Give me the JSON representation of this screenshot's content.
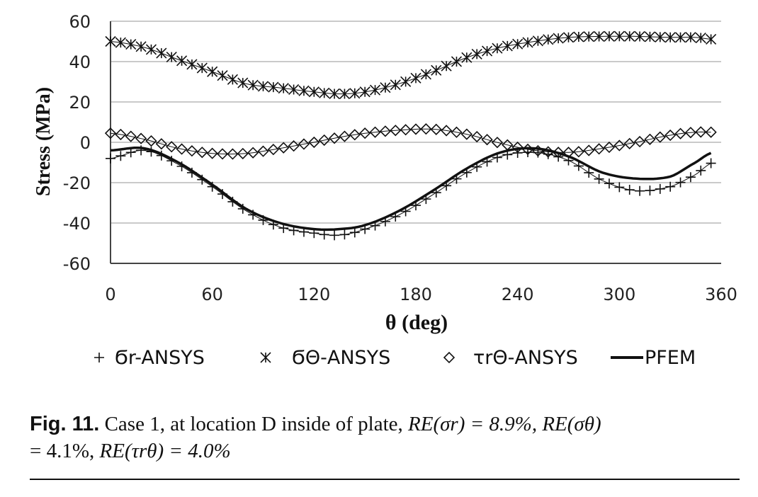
{
  "figure": {
    "caption": {
      "label": "Fig. 11.",
      "text1": "Case 1, at location D inside of plate,",
      "re_sr": "RE(σr) = 8.9%,",
      "re_st": "RE(σθ)",
      "line2a": "= 4.1%,",
      "re_trt": "RE(τrθ) = 4.0%"
    }
  },
  "chart_data": {
    "type": "line",
    "xlabel": "θ (deg)",
    "ylabel": "Stress (MPa)",
    "xlim": [
      0,
      360
    ],
    "ylim": [
      -60,
      60
    ],
    "xticks": [
      "0",
      "60",
      "120",
      "180",
      "240",
      "300",
      "360"
    ],
    "yticks": [
      "60",
      "40",
      "20",
      "0",
      "-20",
      "-40",
      "-60"
    ],
    "grid": "horizontal",
    "legend_position": "bottom",
    "x": [
      0,
      20,
      40,
      60,
      80,
      100,
      120,
      135,
      150,
      170,
      190,
      210,
      230,
      250,
      270,
      290,
      310,
      330,
      345,
      355
    ],
    "series": [
      {
        "name": "Ϭr-ANSYS",
        "marker": "plus",
        "values": [
          -8,
          -4,
          -11,
          -22,
          -34,
          -42,
          -45,
          -46,
          -43,
          -36,
          -26,
          -15,
          -7,
          -5,
          -9,
          -19,
          -24,
          -22,
          -16,
          -10
        ]
      },
      {
        "name": "ϬΘ-ANSYS",
        "marker": "asterisk",
        "values": [
          50,
          47,
          41,
          35,
          29,
          27,
          25,
          24,
          25,
          29,
          35,
          42,
          47,
          50,
          52,
          52.5,
          52.5,
          52,
          52,
          51
        ]
      },
      {
        "name": "τrΘ-ANSYS",
        "marker": "diamond",
        "values": [
          4.5,
          1.5,
          -3,
          -5.5,
          -5.5,
          -3,
          0,
          2.5,
          4.5,
          6,
          6.5,
          4,
          -0.5,
          -4,
          -5,
          -3,
          0,
          3.5,
          5,
          5
        ]
      },
      {
        "name": "PFEM",
        "marker": "line",
        "values": [
          -4,
          -3,
          -10,
          -21,
          -33,
          -40,
          -43,
          -43,
          -41,
          -34,
          -24,
          -13,
          -5,
          -3,
          -7,
          -15,
          -18,
          -17,
          -10,
          -5
        ]
      }
    ]
  }
}
